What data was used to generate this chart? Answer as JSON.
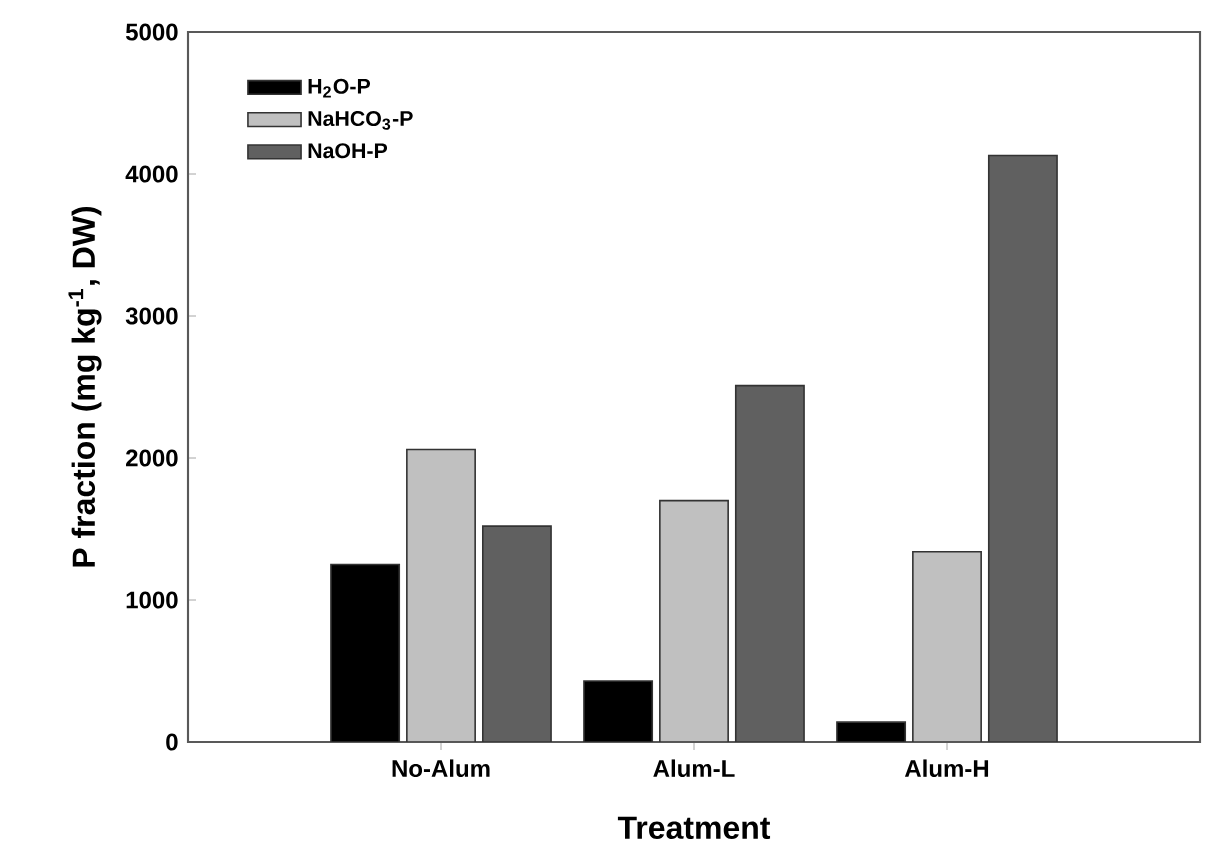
{
  "chart_data": {
    "type": "bar",
    "xlabel": "Treatment",
    "ylabel": "P fraction (mg kg$^{-1}$, DW)",
    "categories": [
      "No-Alum",
      "Alum-L",
      "Alum-H"
    ],
    "series": [
      {
        "name": "H$_{2}$O-P",
        "color": "#000000",
        "values": [
          1250,
          430,
          140
        ]
      },
      {
        "name": "NaHCO$_{3}$-P",
        "color": "#c0c0c0",
        "values": [
          2060,
          1700,
          1340
        ]
      },
      {
        "name": "NaOH-P",
        "color": "#606060",
        "values": [
          1520,
          2510,
          4130
        ]
      }
    ],
    "ylim": [
      0,
      5000
    ],
    "yticks": [
      0,
      1000,
      2000,
      3000,
      4000,
      5000
    ],
    "grid": false,
    "legend": "top left"
  }
}
